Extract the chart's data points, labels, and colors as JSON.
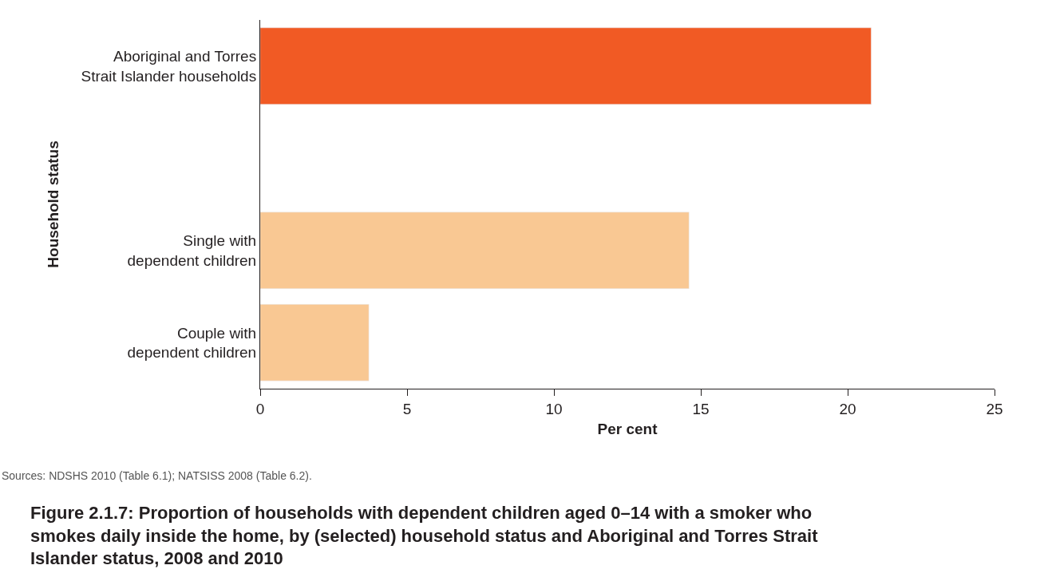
{
  "chart_data": {
    "type": "bar",
    "orientation": "horizontal",
    "title": "Figure 2.1.7: Proportion of households with dependent children aged 0–14 with a smoker who\nsmokes daily inside the home, by (selected) household status and Aboriginal and Torres Strait\nIslander status, 2008 and 2010",
    "categories": [
      "Aboriginal and Torres\nStrait Islander households",
      null,
      "Single with\ndependent children",
      "Couple with\ndependent children"
    ],
    "values": [
      20.8,
      null,
      14.6,
      3.7
    ],
    "colors": [
      "#f15a24",
      null,
      "#f9c893",
      "#f9c893"
    ],
    "xlim": [
      0,
      25
    ],
    "xticks": [
      0,
      5,
      10,
      15,
      20,
      25
    ],
    "xlabel": "Per cent",
    "ylabel": "Household status",
    "annotations": [
      "Sources: NDSHS 2010 (Table 6.1); NATSISS 2008 (Table 6.2)."
    ]
  }
}
